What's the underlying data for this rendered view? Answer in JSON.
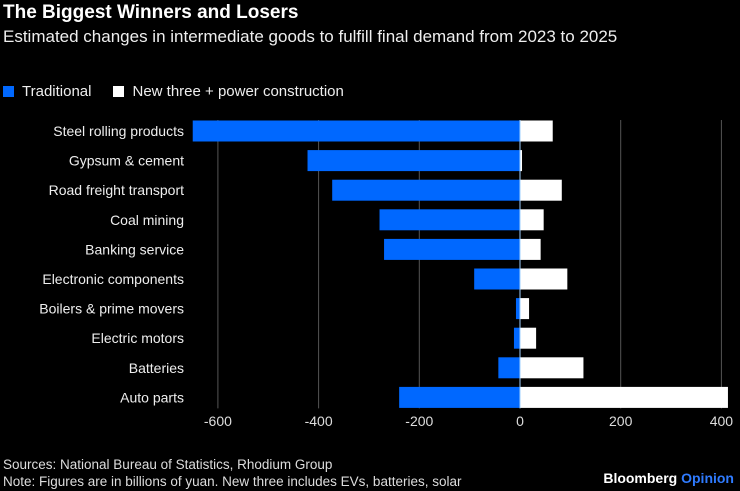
{
  "title": "The Biggest Winners and Losers",
  "subtitle": "Estimated changes in intermediate goods to fulfill final demand from 2023 to 2025",
  "sources": "Sources: National Bureau of Statistics, Rhodium Group",
  "note": "Note: Figures are in billions of yuan. New three includes EVs, batteries, solar",
  "brand": {
    "name": "Bloomberg",
    "suffix": "Opinion"
  },
  "colors": {
    "traditional": "#0068ff",
    "new_three": "#ffffff",
    "brand_accent": "#2f7bff"
  },
  "chart_data": {
    "type": "bar",
    "orientation": "horizontal",
    "stacked": "diverging",
    "categories": [
      "Steel rolling products",
      "Gypsum & cement",
      "Road freight transport",
      "Coal mining",
      "Banking service",
      "Electronic components",
      "Boilers & prime movers",
      "Electric motors",
      "Batteries",
      "Auto parts"
    ],
    "series": [
      {
        "name": "Traditional",
        "values": [
          -650,
          -422,
          -373,
          -279,
          -270,
          -91,
          -8,
          -12,
          -43,
          -240
        ]
      },
      {
        "name": "New three + power construction",
        "values": [
          65,
          4,
          83,
          47,
          41,
          94,
          18,
          32,
          126,
          413
        ]
      }
    ],
    "xlim": [
      -650,
      415
    ],
    "xticks": [
      -600,
      -400,
      -200,
      0,
      200,
      400
    ],
    "xtick_labels": [
      "-600",
      "-400",
      "-200",
      "0",
      "200",
      "400"
    ],
    "grid": true,
    "legend_position": "top-left"
  }
}
